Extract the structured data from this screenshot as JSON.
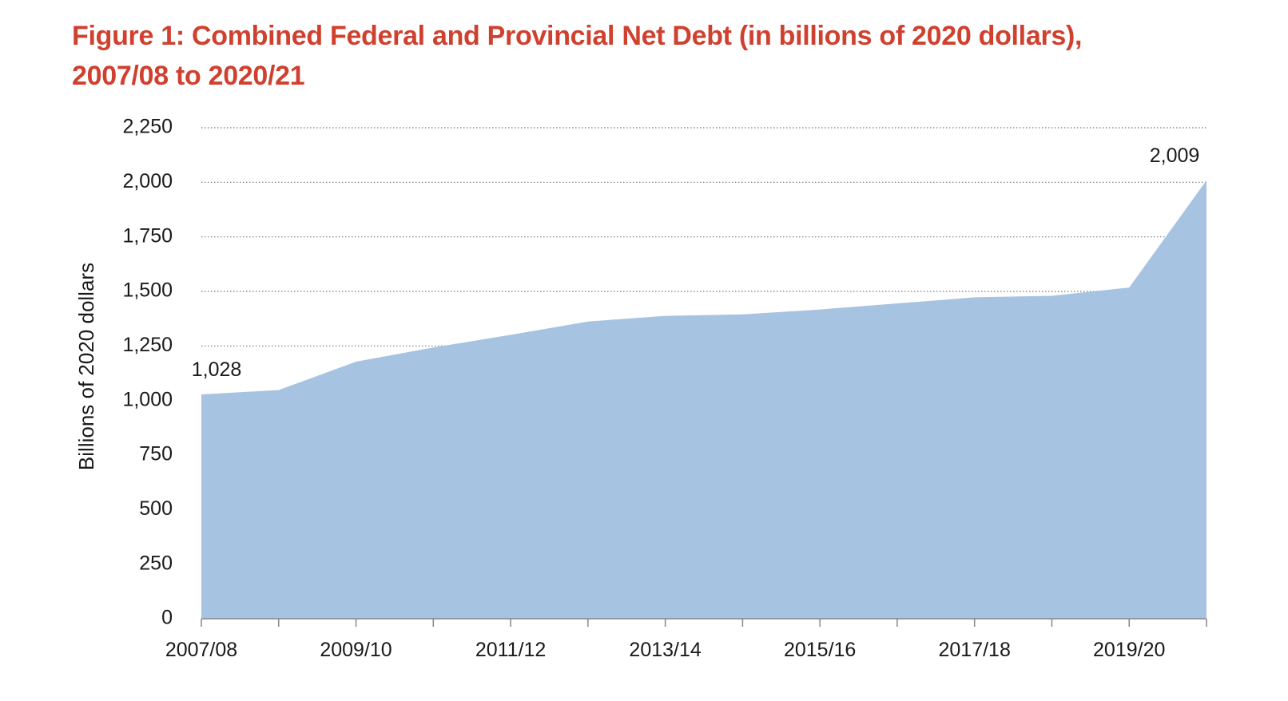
{
  "chart_data": {
    "type": "area",
    "title_line1": "Figure 1: Combined Federal and Provincial Net Debt (in billions of 2020 dollars),",
    "title_line2": "2007/08 to 2020/21",
    "xlabel": "",
    "ylabel": "Billions of 2020 dollars",
    "x": [
      "2007/08",
      "2008/09",
      "2009/10",
      "2010/11",
      "2011/12",
      "2012/13",
      "2013/14",
      "2014/15",
      "2015/16",
      "2016/17",
      "2017/18",
      "2018/19",
      "2019/20",
      "2020/21"
    ],
    "x_tick_labels": [
      "2007/08",
      "",
      "2009/10",
      "",
      "2011/12",
      "",
      "2013/14",
      "",
      "2015/16",
      "",
      "2017/18",
      "",
      "2019/20",
      ""
    ],
    "series": [
      {
        "values": [
          1028,
          1048,
          1178,
          1243,
          1301,
          1362,
          1388,
          1395,
          1417,
          1445,
          1473,
          1480,
          1518,
          2009
        ],
        "color": "#a7c3e2"
      }
    ],
    "data_labels": [
      {
        "index": 0,
        "text": "1,028"
      },
      {
        "index": 13,
        "text": "2,009"
      }
    ],
    "ylim": [
      0,
      2250
    ],
    "y_ticks": [
      0,
      250,
      500,
      750,
      1000,
      1250,
      1500,
      1750,
      2000,
      2250
    ],
    "y_tick_labels": [
      "0",
      "250",
      "500",
      "750",
      "1,000",
      "1,250",
      "1,500",
      "1,750",
      "2,000",
      "2,250"
    ],
    "grid": "horizontal-dotted",
    "legend": "none",
    "colors": {
      "title": "#d0402e",
      "area": "#a7c3e2",
      "grid": "#777777",
      "axis": "#888888",
      "text": "#1a1a1a"
    }
  }
}
